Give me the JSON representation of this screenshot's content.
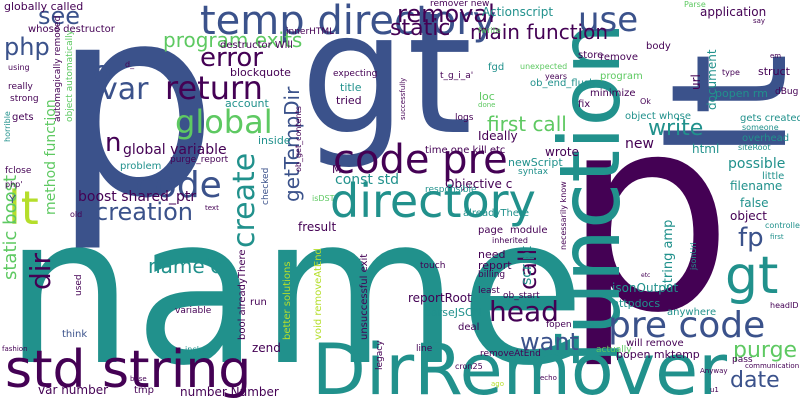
{
  "cloud": {
    "words": {
      "p_big": "p",
      "p_small": "p",
      "name": "name",
      "gt": "gt",
      "gt_small": "gt",
      "lt": "lt",
      "lt_small": "lt",
      "function": "function",
      "std_string": "std string",
      "dirremover": "DirRemover",
      "directory": "directory",
      "temp_directory": "temp directory",
      "code_pre": "code pre",
      "pre_code": "pre code",
      "code": "code",
      "return": "return",
      "global": "global",
      "create": "create",
      "error": "error",
      "use": "use",
      "static": "static",
      "removal": "removal",
      "main_function": "main function",
      "program_exits": "program exits",
      "var": "var",
      "o": "o",
      "n": "n",
      "php": "php",
      "see": "see",
      "dir": "dir",
      "head": "head",
      "call": "call",
      "want": "want",
      "write": "write",
      "first_call": "first call",
      "purge": "purge",
      "date": "date",
      "fp": "fp",
      "static_boost": "static boost",
      "creation": "creation",
      "name_c": "name'c",
      "getTempDir": "getTempDir",
      "global_variable": "global variable",
      "boost_shared_ptr": "boost shared_ptr",
      "method_function": "method function",
      "objective_c": "Objective c",
      "const_std": "const std",
      "string_amp": "string amp",
      "script": "script",
      "possible": "possible",
      "filename": "filename",
      "false": "false",
      "object": "object",
      "reportRoot": "reportRoot",
      "jsonOutput": "jsonOutput",
      "httpdocs": "httpdocs",
      "parseJSON": "parseJSON",
      "unsuccessful_exit": "unsuccessful exit",
      "void_removeAtEnd": "void removeAtEnd",
      "better_solutions": "better solutions",
      "bool_alreadyThere": "bool alreadyThere",
      "var_number": "var number",
      "number_Number": "number Number",
      "fresult": "fresult",
      "newScript": "newScript",
      "ideally": "Ideally",
      "wrote": "wrote",
      "new": "new",
      "html": "html",
      "url": "url",
      "document": "document",
      "popen_rm": "popen rm",
      "popen_mktemp": "popen mktemp",
      "struct": "struct",
      "application": "application",
      "actionscript": "Actionscript",
      "blockquote": "blockquote",
      "globally_called": "globally called",
      "whose_destructor": "whose destructor",
      "destructor_will": "destructor Will",
      "innerHTML": "innerHTML",
      "remover_new": "remover new",
      "account": "account",
      "inside": "inside",
      "tried": "tried",
      "title": "title",
      "loc": "loc",
      "expecting": "expecting",
      "t_g_i_a": "t_g_i_a'",
      "fgd": "fgd",
      "ob_end_flush": "ob_end_flush",
      "store": "store",
      "remove": "remove",
      "program": "program",
      "minimize": "minimize",
      "body": "body",
      "logs": "logs",
      "time_one_kill_etc": "time one kill etc",
      "fix": "fix",
      "another": "another",
      "object_whose": "object whose",
      "gets_created": "gets created",
      "someone": "someone",
      "overhead": "overhead",
      "siteRoot": "siteRoot",
      "dBug": "dBug",
      "little": "little",
      "headID": "headID",
      "pass": "pass",
      "communication": "communication",
      "controller": "controller",
      "first": "first",
      "anywhere": "anywhere",
      "will_remove": "will remove",
      "actually": "actually",
      "removeAtEnd": "removeAtEnd",
      "deal": "deal",
      "fopen": "fopen",
      "ob_start": "ob_start",
      "least": "least",
      "billing": "billing",
      "touch": "touch",
      "page": "page",
      "module": "module",
      "inherited": "inherited",
      "need": "need",
      "report": "report",
      "alreadyThere": "alreadyThere",
      "responsible": "responsible",
      "syntax": "syntax",
      "purge_report": "purge_report",
      "problem": "problem",
      "run": "run",
      "zend": "zend",
      "line": "line",
      "legacy": "legacy",
      "checked": "checked",
      "ob_get_contents": "ob_get_contents",
      "isDST": "isDST",
      "M": "M",
      "think": "think",
      "variable": "variable",
      "include": "include",
      "tmp": "tmp",
      "fashion": "fashion",
      "text": "text",
      "used": "used",
      "old": "old",
      "fclose": "fclose",
      "php_q": "php'",
      "Y": "Y",
      "horrible": "horrible",
      "gets": "gets",
      "strong": "strong",
      "really": "really",
      "using": "using",
      "automagically_removed": "automagically removed",
      "object_automatically": "object automatically",
      "d_": "d_",
      "expected": "expected",
      "parse": "Parse",
      "write_small": "fwrite",
      "say": "say",
      "em": "em",
      "etc": "etc",
      "done": "done",
      "ok": "Ok",
      "years": "years",
      "unexpected": "unexpected",
      "ext": "ext",
      "type": "type",
      "jsonUrl": "jsonUrl",
      "obstart": "obstart",
      "necessarily_know": "necessarily know",
      "every": "every",
      "echo": "echo",
      "u1": "u1",
      "anyway": "Anyway",
      "base": "base",
      "ago": "ago",
      "cron": "cron25",
      "successfully": "successfully"
    }
  }
}
